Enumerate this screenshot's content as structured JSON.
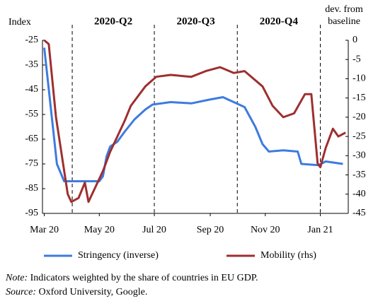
{
  "chart_data": {
    "type": "line",
    "y_label": "Index",
    "y2_label": [
      "dev. from",
      "baseline"
    ],
    "quarters": [
      "2020-Q2",
      "2020-Q3",
      "2020-Q4"
    ],
    "quarter_lines": [
      31,
      122,
      214,
      306
    ],
    "xlim": [
      -2,
      337
    ],
    "xticks": [
      {
        "value": 0,
        "label": "Mar 20"
      },
      {
        "value": 61,
        "label": "May 20"
      },
      {
        "value": 122,
        "label": "Jul 20"
      },
      {
        "value": 184,
        "label": "Sep 20"
      },
      {
        "value": 245,
        "label": "Nov 20"
      },
      {
        "value": 306,
        "label": "Jan 21"
      }
    ],
    "ylim": [
      -95,
      -25
    ],
    "yticks": [
      -25,
      -35,
      -45,
      -55,
      -65,
      -75,
      -85,
      -95
    ],
    "y2lim": [
      -45,
      0
    ],
    "y2ticks": [
      0,
      -5,
      -10,
      -15,
      -20,
      -25,
      -30,
      -35,
      -40,
      -45
    ],
    "series": [
      {
        "name": "Stringency (inverse)",
        "color": "#3d7be0",
        "x": [
          0,
          14,
          22,
          61,
          65,
          69,
          73,
          81,
          89,
          100,
          112,
          120,
          140,
          163,
          183,
          198,
          210,
          222,
          234,
          242,
          249,
          265,
          281,
          285,
          304,
          312,
          331
        ],
        "values": [
          -28,
          -75,
          -82,
          -82,
          -80,
          -72,
          -68,
          -66,
          -62,
          -57,
          -53,
          -51,
          -50,
          -50.5,
          -49,
          -48,
          -50,
          -52,
          -60,
          -67,
          -70,
          -69.5,
          -70,
          -75,
          -75.5,
          -74,
          -75
        ]
      },
      {
        "name": "Mobility (rhs)",
        "color": "#9e2f2f",
        "axis": "y2",
        "x": [
          0,
          5,
          13,
          26,
          30,
          38,
          45,
          49,
          57,
          65,
          73,
          81,
          89,
          96,
          112,
          124,
          140,
          163,
          179,
          195,
          210,
          222,
          242,
          253,
          265,
          277,
          289,
          296,
          303,
          306,
          312,
          320,
          326,
          334
        ],
        "values": [
          0,
          -1,
          -20,
          -40,
          -42,
          -41,
          -37,
          -42,
          -38,
          -34,
          -29,
          -25,
          -21,
          -17,
          -12,
          -9.5,
          -9,
          -9.5,
          -8,
          -7,
          -8.5,
          -8,
          -12,
          -17,
          -20,
          -19,
          -14,
          -14,
          -32,
          -33,
          -28,
          -23,
          -25,
          -24
        ]
      }
    ]
  },
  "note": {
    "label": "Note:",
    "text": " Indicators weighted by the share of countries in EU GDP."
  },
  "source": {
    "label": "Source:",
    "text": " Oxford University, Google."
  }
}
